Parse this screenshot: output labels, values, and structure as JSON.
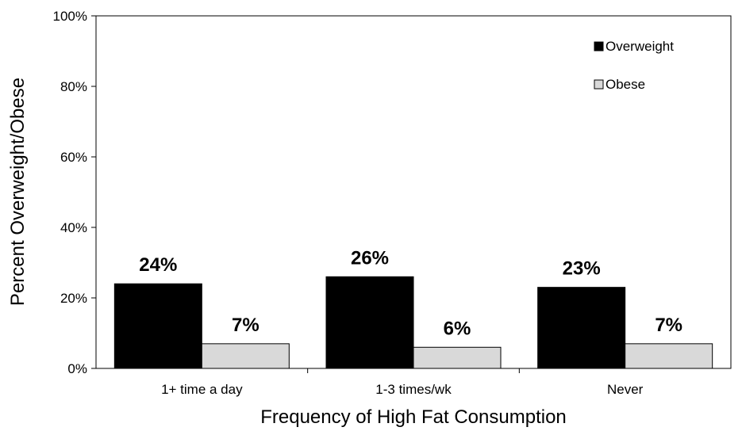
{
  "chart_data": {
    "type": "bar",
    "title": "",
    "xlabel": "Frequency of High Fat Consumption",
    "ylabel": "Percent Overweight/Obese",
    "ylim": [
      0,
      100
    ],
    "yticks": [
      "0%",
      "20%",
      "40%",
      "60%",
      "80%",
      "100%"
    ],
    "ytick_values": [
      0,
      20,
      40,
      60,
      80,
      100
    ],
    "categories": [
      "1+ time a day",
      "1-3 times/wk",
      "Never"
    ],
    "series": [
      {
        "name": "Overweight",
        "values": [
          24,
          26,
          23
        ],
        "labels": [
          "24%",
          "26%",
          "23%"
        ],
        "color": "#000000"
      },
      {
        "name": "Obese",
        "values": [
          7,
          6,
          7
        ],
        "labels": [
          "7%",
          "6%",
          "7%"
        ],
        "color": "#d9d9d9"
      }
    ],
    "legend_position": "top-right",
    "grid": false
  }
}
